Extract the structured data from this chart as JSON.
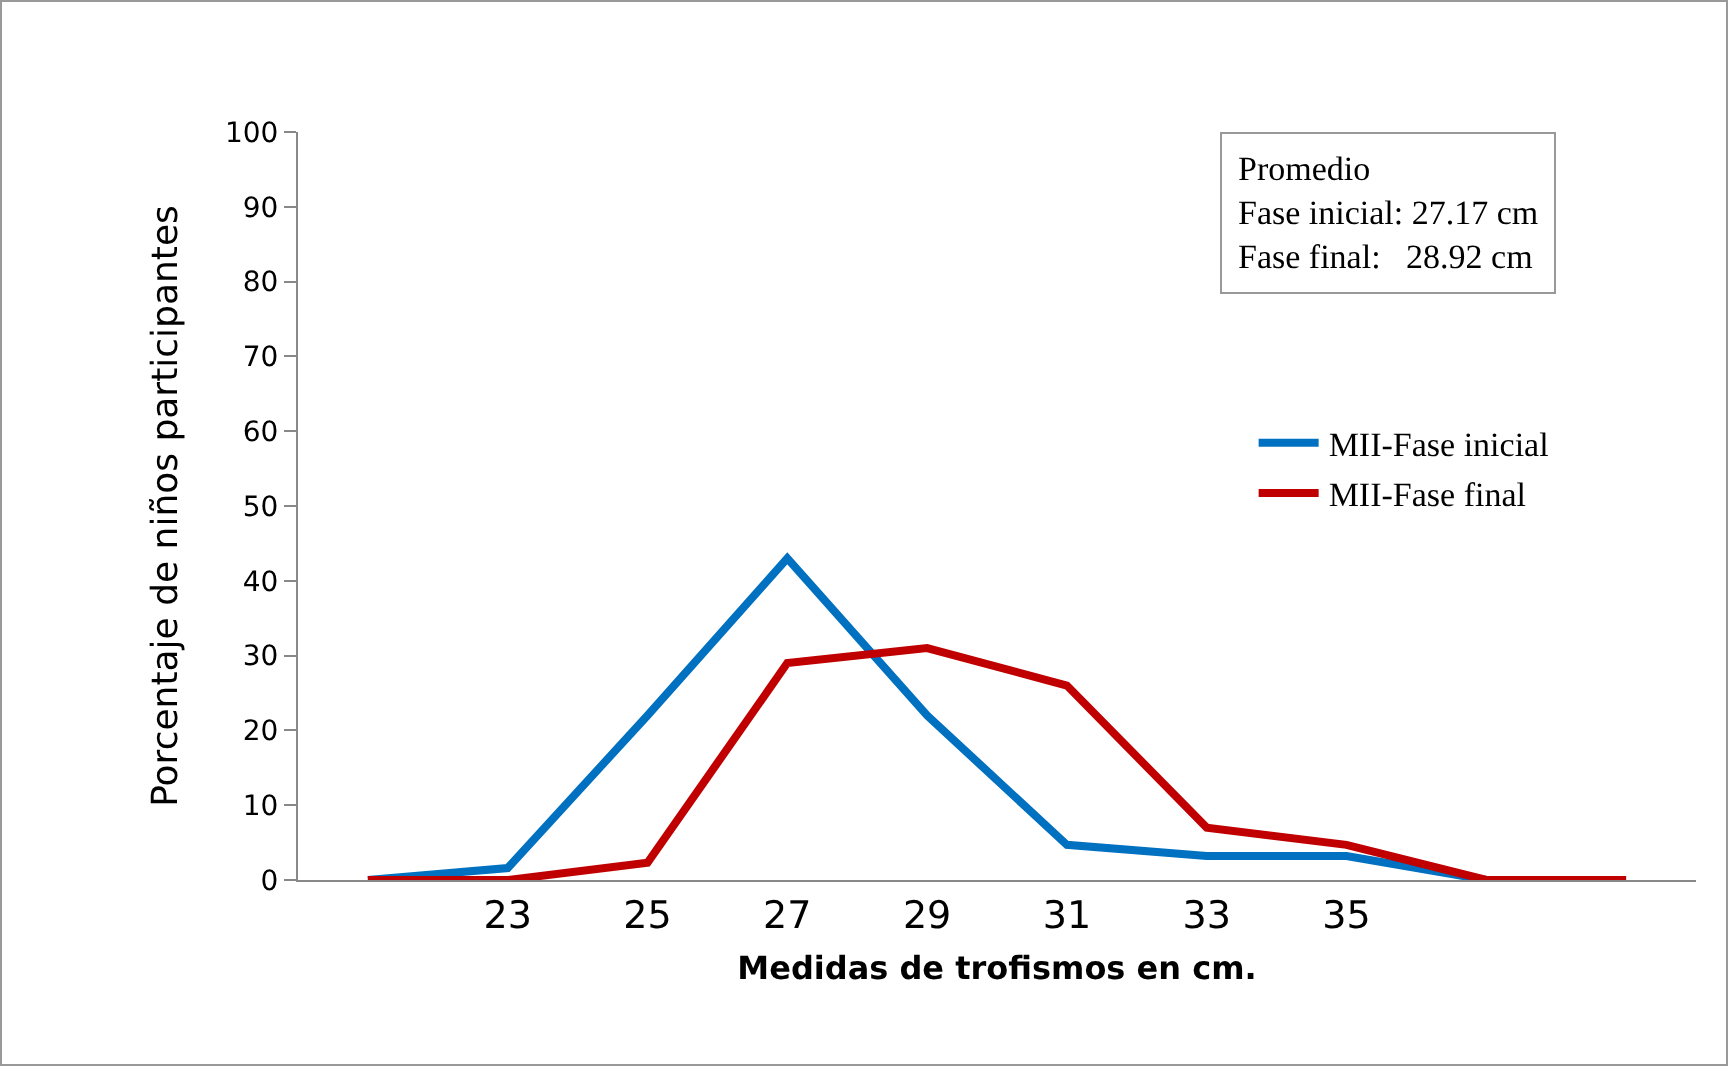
{
  "chart_data": {
    "type": "line",
    "xlabel": "Medidas de trofismos en cm.",
    "ylabel": "Porcentaje de niños participantes",
    "categories": [
      null,
      "23",
      "25",
      "27",
      "29",
      "31",
      "33",
      "35",
      null,
      null
    ],
    "series": [
      {
        "name": "MII-Fase inicial",
        "color": "#0070c0",
        "values": [
          0,
          1.6,
          22,
          43,
          22,
          4.7,
          3.2,
          3.2,
          0,
          0
        ]
      },
      {
        "name": "MII-Fase final",
        "color": "#c00000",
        "values": [
          0,
          0,
          2.3,
          29,
          31,
          26,
          7,
          4.7,
          0,
          0
        ]
      }
    ],
    "ylim": [
      0,
      100
    ],
    "yticks": [
      0,
      10,
      20,
      30,
      40,
      50,
      60,
      70,
      80,
      90,
      100
    ],
    "grid": false,
    "legend": "right",
    "marker": "none",
    "line_style": "solid",
    "annotations": [
      "Promedio",
      "Fase inicial: 27.17 cm",
      "Fase final:   28.92 cm"
    ]
  }
}
